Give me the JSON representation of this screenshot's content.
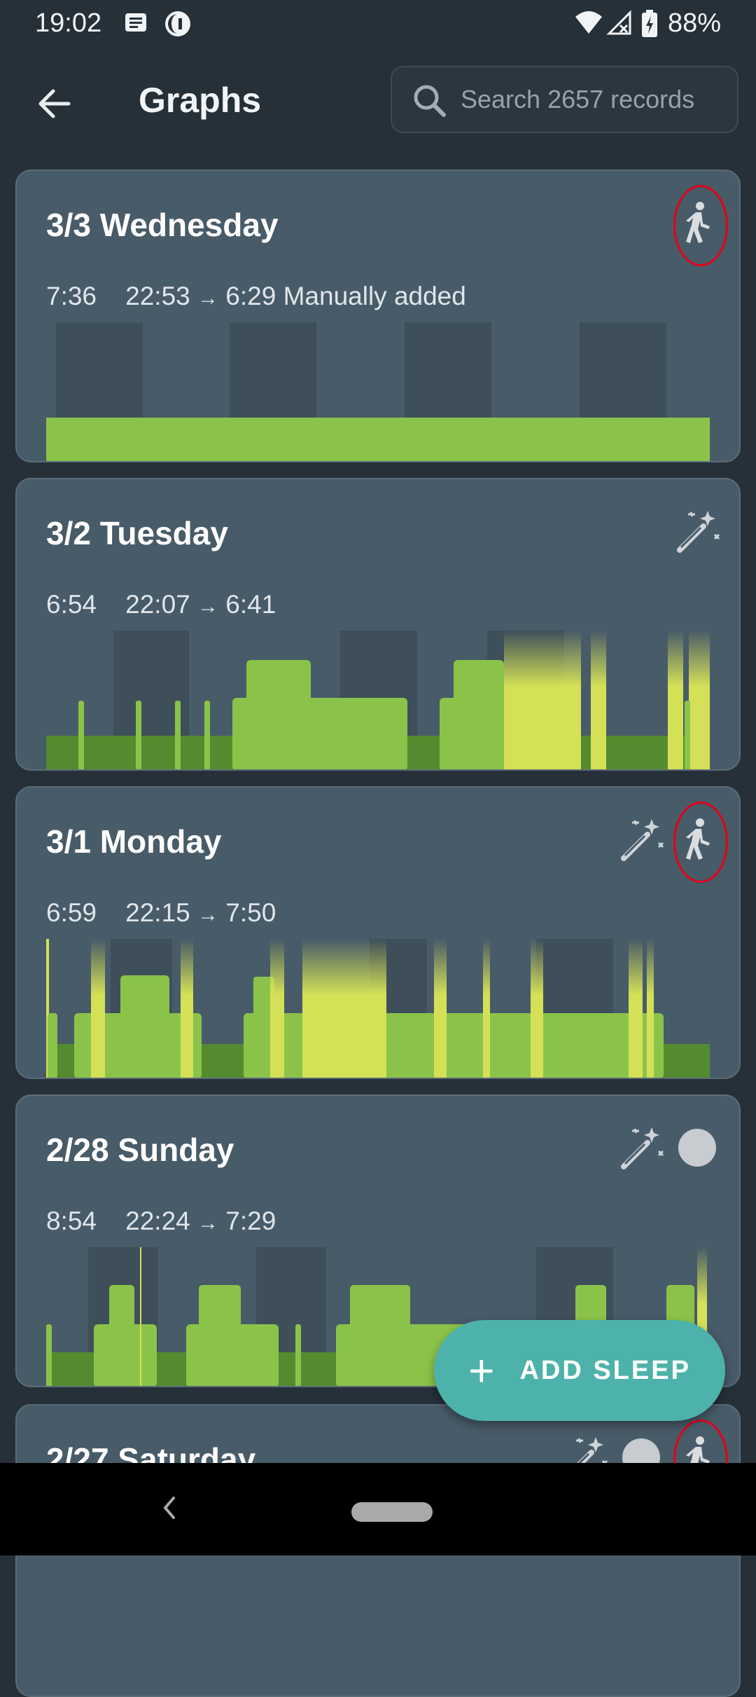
{
  "status_bar": {
    "time": "19:02",
    "battery": "88%"
  },
  "header": {
    "title": "Graphs",
    "search_placeholder": "Search 2657 records"
  },
  "records": [
    {
      "date": "3/3 Wednesday",
      "duration": "7:36",
      "start": "22:53",
      "end": "6:29",
      "note": "Manually added",
      "tags": [
        "walking-icon"
      ],
      "circled": [
        "walking-icon"
      ]
    },
    {
      "date": "3/2 Tuesday",
      "duration": "6:54",
      "start": "22:07",
      "end": "6:41",
      "note": "",
      "tags": [
        "magic-wand-icon"
      ],
      "circled": []
    },
    {
      "date": "3/1 Monday",
      "duration": "6:59",
      "start": "22:15",
      "end": "7:50",
      "note": "",
      "tags": [
        "magic-wand-icon",
        "walking-icon"
      ],
      "circled": [
        "walking-icon"
      ]
    },
    {
      "date": "2/28 Sunday",
      "duration": "8:54",
      "start": "22:24",
      "end": "7:29",
      "note": "",
      "tags": [
        "magic-wand-icon",
        "circle-icon"
      ],
      "circled": []
    },
    {
      "date": "2/27 Saturday",
      "duration": "",
      "start": "",
      "end": "",
      "note": "",
      "tags": [
        "magic-wand-icon",
        "circle-icon",
        "walking-icon"
      ],
      "circled": [
        "walking-icon"
      ]
    }
  ],
  "fab": {
    "label": "ADD SLEEP"
  },
  "colors": {
    "background": "#263038",
    "card": "#485b68",
    "light_sleep": "#8bc34a",
    "deep_sleep": "#558b2f",
    "awake": "#d4e157",
    "fab": "#4db3aa",
    "highlight_circle": "#e3001b"
  }
}
